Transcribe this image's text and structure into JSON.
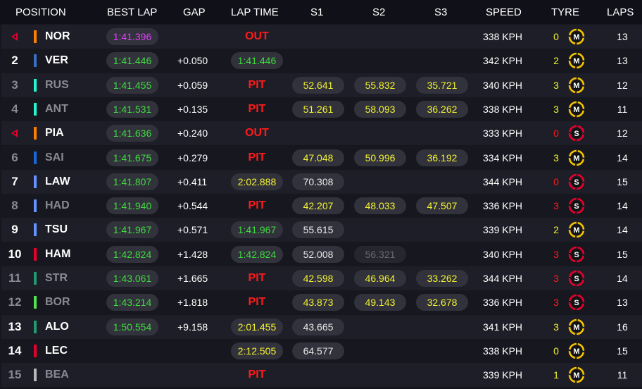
{
  "headers": {
    "position": "POSITION",
    "best_lap": "BEST LAP",
    "gap": "GAP",
    "lap_time": "LAP TIME",
    "s1": "S1",
    "s2": "S2",
    "s3": "S3",
    "speed": "SPEED",
    "tyre": "TYRE",
    "laps": "LAPS"
  },
  "rows": [
    {
      "pos": "",
      "retired": true,
      "driver": "NOR",
      "team_color": "#ff8000",
      "dim": false,
      "best": "1:41.396",
      "best_color": "purple",
      "gap": "",
      "status": "OUT",
      "lap": "",
      "lap_color": "",
      "s1": "",
      "s1_color": "",
      "s2": "",
      "s2_color": "",
      "s3": "",
      "s3_color": "",
      "speed": "338 KPH",
      "tyre_age": "0",
      "tyre_age_color": "yellow",
      "tyre": "M",
      "tyre_color": "#f5c400",
      "laps": "13"
    },
    {
      "pos": "2",
      "retired": false,
      "driver": "VER",
      "team_color": "#3671c6",
      "dim": false,
      "best": "1:41.446",
      "best_color": "green",
      "gap": "+0.050",
      "status": "",
      "lap": "1:41.446",
      "lap_color": "green",
      "s1": "",
      "s1_color": "",
      "s2": "",
      "s2_color": "",
      "s3": "",
      "s3_color": "",
      "speed": "342 KPH",
      "tyre_age": "2",
      "tyre_age_color": "yellow",
      "tyre": "M",
      "tyre_color": "#f5c400",
      "laps": "13"
    },
    {
      "pos": "3",
      "retired": false,
      "driver": "RUS",
      "team_color": "#27f4d2",
      "dim": true,
      "best": "1:41.455",
      "best_color": "green",
      "gap": "+0.059",
      "status": "PIT",
      "lap": "",
      "lap_color": "",
      "s1": "52.641",
      "s1_color": "yellow",
      "s2": "55.832",
      "s2_color": "yellow",
      "s3": "35.721",
      "s3_color": "yellow",
      "speed": "340 KPH",
      "tyre_age": "3",
      "tyre_age_color": "yellow",
      "tyre": "M",
      "tyre_color": "#f5c400",
      "laps": "12"
    },
    {
      "pos": "4",
      "retired": false,
      "driver": "ANT",
      "team_color": "#27f4d2",
      "dim": true,
      "best": "1:41.531",
      "best_color": "green",
      "gap": "+0.135",
      "status": "PIT",
      "lap": "",
      "lap_color": "",
      "s1": "51.261",
      "s1_color": "yellow",
      "s2": "58.093",
      "s2_color": "yellow",
      "s3": "36.262",
      "s3_color": "yellow",
      "speed": "338 KPH",
      "tyre_age": "3",
      "tyre_age_color": "yellow",
      "tyre": "M",
      "tyre_color": "#f5c400",
      "laps": "11"
    },
    {
      "pos": "",
      "retired": true,
      "driver": "PIA",
      "team_color": "#ff8000",
      "dim": false,
      "best": "1:41.636",
      "best_color": "green",
      "gap": "+0.240",
      "status": "OUT",
      "lap": "",
      "lap_color": "",
      "s1": "",
      "s1_color": "",
      "s2": "",
      "s2_color": "",
      "s3": "",
      "s3_color": "",
      "speed": "333 KPH",
      "tyre_age": "0",
      "tyre_age_color": "red",
      "tyre": "S",
      "tyre_color": "#e8002d",
      "laps": "12"
    },
    {
      "pos": "6",
      "retired": false,
      "driver": "SAI",
      "team_color": "#1868db",
      "dim": true,
      "best": "1:41.675",
      "best_color": "green",
      "gap": "+0.279",
      "status": "PIT",
      "lap": "",
      "lap_color": "",
      "s1": "47.048",
      "s1_color": "yellow",
      "s2": "50.996",
      "s2_color": "yellow",
      "s3": "36.192",
      "s3_color": "yellow",
      "speed": "334 KPH",
      "tyre_age": "3",
      "tyre_age_color": "yellow",
      "tyre": "M",
      "tyre_color": "#f5c400",
      "laps": "14"
    },
    {
      "pos": "7",
      "retired": false,
      "driver": "LAW",
      "team_color": "#6692ff",
      "dim": false,
      "best": "1:41.807",
      "best_color": "green",
      "gap": "+0.411",
      "status": "",
      "lap": "2:02.888",
      "lap_color": "yellow",
      "s1": "70.308",
      "s1_color": "white",
      "s2": "",
      "s2_color": "",
      "s3": "",
      "s3_color": "",
      "speed": "344 KPH",
      "tyre_age": "0",
      "tyre_age_color": "red",
      "tyre": "S",
      "tyre_color": "#e8002d",
      "laps": "15"
    },
    {
      "pos": "8",
      "retired": false,
      "driver": "HAD",
      "team_color": "#6692ff",
      "dim": true,
      "best": "1:41.940",
      "best_color": "green",
      "gap": "+0.544",
      "status": "PIT",
      "lap": "",
      "lap_color": "",
      "s1": "42.207",
      "s1_color": "yellow",
      "s2": "48.033",
      "s2_color": "yellow",
      "s3": "47.507",
      "s3_color": "yellow",
      "speed": "336 KPH",
      "tyre_age": "3",
      "tyre_age_color": "red",
      "tyre": "S",
      "tyre_color": "#e8002d",
      "laps": "14"
    },
    {
      "pos": "9",
      "retired": false,
      "driver": "TSU",
      "team_color": "#6692ff",
      "dim": false,
      "best": "1:41.967",
      "best_color": "green",
      "gap": "+0.571",
      "status": "",
      "lap": "1:41.967",
      "lap_color": "green",
      "s1": "55.615",
      "s1_color": "white",
      "s2": "",
      "s2_color": "",
      "s3": "",
      "s3_color": "",
      "speed": "339 KPH",
      "tyre_age": "2",
      "tyre_age_color": "yellow",
      "tyre": "M",
      "tyre_color": "#f5c400",
      "laps": "14"
    },
    {
      "pos": "10",
      "retired": false,
      "driver": "HAM",
      "team_color": "#e8002d",
      "dim": false,
      "best": "1:42.824",
      "best_color": "green",
      "gap": "+1.428",
      "status": "",
      "lap": "1:42.824",
      "lap_color": "green",
      "s1": "52.008",
      "s1_color": "white",
      "s2": "56.321",
      "s2_color": "grey",
      "s3": "",
      "s3_color": "",
      "speed": "340 KPH",
      "tyre_age": "3",
      "tyre_age_color": "red",
      "tyre": "S",
      "tyre_color": "#e8002d",
      "laps": "15"
    },
    {
      "pos": "11",
      "retired": false,
      "driver": "STR",
      "team_color": "#229971",
      "dim": true,
      "best": "1:43.061",
      "best_color": "green",
      "gap": "+1.665",
      "status": "PIT",
      "lap": "",
      "lap_color": "",
      "s1": "42.598",
      "s1_color": "yellow",
      "s2": "46.964",
      "s2_color": "yellow",
      "s3": "33.262",
      "s3_color": "yellow",
      "speed": "344 KPH",
      "tyre_age": "3",
      "tyre_age_color": "red",
      "tyre": "S",
      "tyre_color": "#e8002d",
      "laps": "14"
    },
    {
      "pos": "12",
      "retired": false,
      "driver": "BOR",
      "team_color": "#52e252",
      "dim": true,
      "best": "1:43.214",
      "best_color": "green",
      "gap": "+1.818",
      "status": "PIT",
      "lap": "",
      "lap_color": "",
      "s1": "43.873",
      "s1_color": "yellow",
      "s2": "49.143",
      "s2_color": "yellow",
      "s3": "32.678",
      "s3_color": "yellow",
      "speed": "336 KPH",
      "tyre_age": "3",
      "tyre_age_color": "red",
      "tyre": "S",
      "tyre_color": "#e8002d",
      "laps": "13"
    },
    {
      "pos": "13",
      "retired": false,
      "driver": "ALO",
      "team_color": "#229971",
      "dim": false,
      "best": "1:50.554",
      "best_color": "green",
      "gap": "+9.158",
      "status": "",
      "lap": "2:01.455",
      "lap_color": "yellow",
      "s1": "43.665",
      "s1_color": "white",
      "s2": "",
      "s2_color": "",
      "s3": "",
      "s3_color": "",
      "speed": "341 KPH",
      "tyre_age": "3",
      "tyre_age_color": "yellow",
      "tyre": "M",
      "tyre_color": "#f5c400",
      "laps": "16"
    },
    {
      "pos": "14",
      "retired": false,
      "driver": "LEC",
      "team_color": "#e8002d",
      "dim": false,
      "best": "",
      "best_color": "",
      "gap": "",
      "status": "",
      "lap": "2:12.505",
      "lap_color": "yellow",
      "s1": "64.577",
      "s1_color": "white",
      "s2": "",
      "s2_color": "",
      "s3": "",
      "s3_color": "",
      "speed": "338 KPH",
      "tyre_age": "0",
      "tyre_age_color": "yellow",
      "tyre": "M",
      "tyre_color": "#f5c400",
      "laps": "15"
    },
    {
      "pos": "15",
      "retired": false,
      "driver": "BEA",
      "team_color": "#b6babd",
      "dim": true,
      "best": "",
      "best_color": "",
      "gap": "",
      "status": "PIT",
      "lap": "",
      "lap_color": "",
      "s1": "",
      "s1_color": "",
      "s2": "",
      "s2_color": "",
      "s3": "",
      "s3_color": "",
      "speed": "339 KPH",
      "tyre_age": "1",
      "tyre_age_color": "yellow",
      "tyre": "M",
      "tyre_color": "#f5c400",
      "laps": "11"
    }
  ],
  "colors": {
    "purple": "#e040fb",
    "green": "#3edc3e",
    "yellow": "#f2f232",
    "red": "#ff1a1a"
  }
}
